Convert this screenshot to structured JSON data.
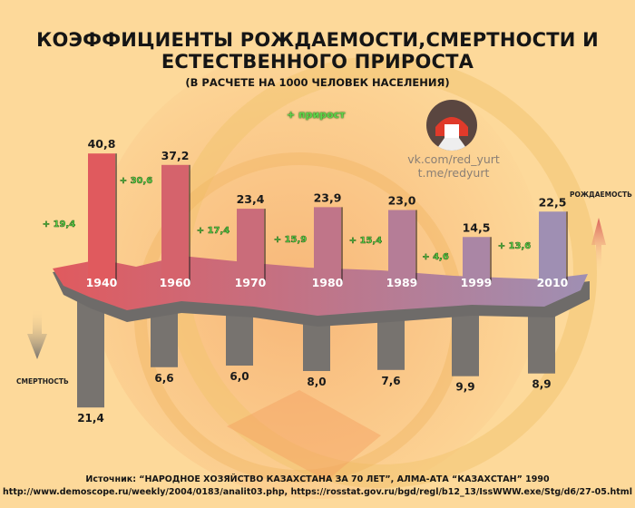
{
  "chart_data": {
    "type": "bar",
    "title": "КОЭФФИЦИЕНТЫ РОЖДАЕМОСТИ,СМЕРТНОСТИ И ЕСТЕСТВЕННОГО ПРИРОСТА",
    "subtitle": "(В РАСЧЕТЕ НА 1000 ЧЕЛОВЕК НАСЕЛЕНИЯ)",
    "categories": [
      "1940",
      "1960",
      "1970",
      "1980",
      "1989",
      "1999",
      "2010"
    ],
    "series": [
      {
        "name": "РОЖДАЕМОСТЬ",
        "values": [
          40.8,
          37.2,
          23.4,
          23.9,
          23.0,
          14.5,
          22.5
        ],
        "labels": [
          "40,8",
          "37,2",
          "23,4",
          "23,9",
          "23,0",
          "14,5",
          "22,5"
        ]
      },
      {
        "name": "СМЕРТНОСТЬ",
        "values": [
          21.4,
          6.6,
          6.0,
          8.0,
          7.6,
          9.9,
          8.9
        ],
        "labels": [
          "21,4",
          "6,6",
          "6,0",
          "8,0",
          "7,6",
          "9,9",
          "8,9"
        ]
      },
      {
        "name": "+ прирост",
        "values": [
          19.4,
          30.6,
          17.4,
          15.9,
          15.4,
          4.6,
          13.6
        ],
        "labels": [
          "+ 19,4",
          "+ 30,6",
          "+ 17,4",
          "+ 15,9",
          "+ 15,4",
          "+ 4,6",
          "+ 13,6"
        ]
      }
    ],
    "colors": {
      "birth_start": "#e05a5e",
      "birth_end": "#9f8fb3",
      "death": "#77736f",
      "growth": "#5fd34a"
    }
  },
  "legend": {
    "growth": "+ прирост",
    "birth_axis": "РОЖДАЕМОСТЬ",
    "death_axis": "СМЕРТНОСТЬ"
  },
  "branding": {
    "vk": "vk.com/red_yurt",
    "telegram": "t.me/redyurt",
    "logo_icon": "yurt-icon"
  },
  "source": {
    "line1": "Источник: “НАРОДНОЕ ХОЗЯЙСТВО КАЗАХСТАНА ЗА 70 ЛЕТ”, АЛМА-АТА “КАЗАХСТАН” 1990",
    "line2": "http://www.demoscope.ru/weekly/2004/0183/analit03.php, https://rosstat.gov.ru/bgd/regl/b12_13/IssWWW.exe/Stg/d6/27-05.html"
  }
}
